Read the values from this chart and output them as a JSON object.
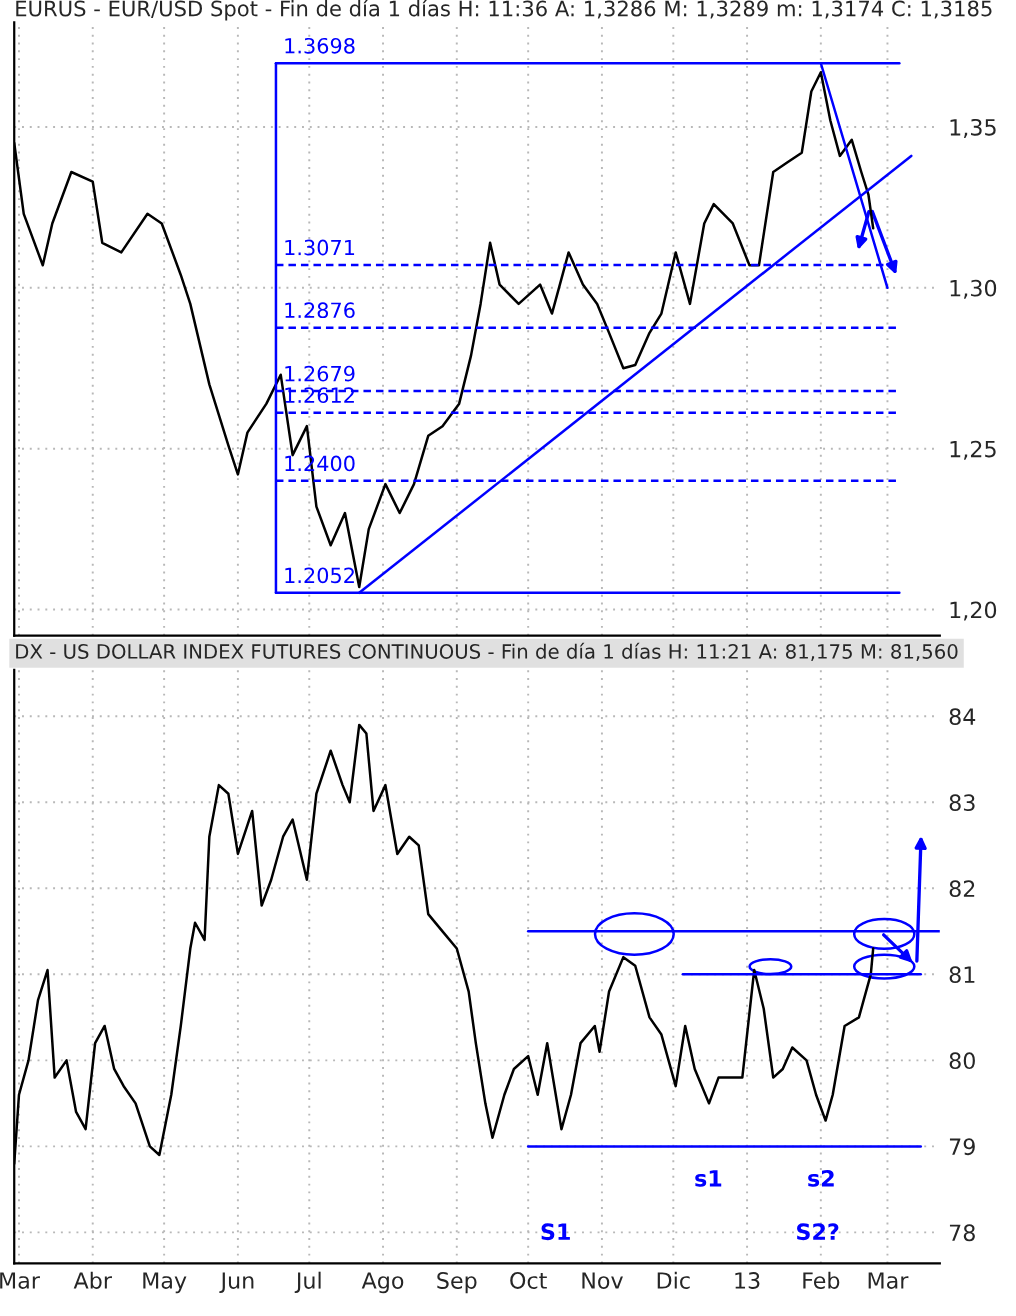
{
  "chart_data": [
    {
      "type": "line",
      "title": "EURUS - EUR/USD Spot - Fin de día 1 días H: 11:36 A: 1,3286 M: 1,3289 m: 1,3174 C: 1,3185",
      "xlim": [
        "2012-02-28",
        "2013-03-23"
      ],
      "ylim": [
        1.1919,
        1.3825
      ],
      "xticks": [
        {
          "value": "2012-03-01",
          "label": null
        },
        {
          "value": "2012-04-01",
          "label": null
        },
        {
          "value": "2012-05-01",
          "label": null
        },
        {
          "value": "2012-06-01",
          "label": null
        },
        {
          "value": "2012-07-01",
          "label": null
        },
        {
          "value": "2012-08-01",
          "label": null
        },
        {
          "value": "2012-09-01",
          "label": null
        },
        {
          "value": "2012-10-01",
          "label": null
        },
        {
          "value": "2012-11-01",
          "label": null
        },
        {
          "value": "2012-12-01",
          "label": null
        },
        {
          "value": "2013-01-01",
          "label": null
        },
        {
          "value": "2013-02-01",
          "label": null
        },
        {
          "value": "2013-03-01",
          "label": null
        }
      ],
      "yticks": [
        {
          "value": 1.2,
          "label": "1,20"
        },
        {
          "value": 1.25,
          "label": "1,25"
        },
        {
          "value": 1.3,
          "label": "1,30"
        },
        {
          "value": 1.35,
          "label": "1,35"
        }
      ],
      "tick_labels": "y",
      "grid": true,
      "marker": "none",
      "series": [
        {
          "color": "#000000",
          "line_style": "solid",
          "x": [
            "2012-02-28",
            "2012-03-03",
            "2012-03-11",
            "2012-03-15",
            "2012-03-23",
            "2012-04-01",
            "2012-04-05",
            "2012-04-13",
            "2012-04-24",
            "2012-04-30",
            "2012-05-08",
            "2012-05-12",
            "2012-05-20",
            "2012-05-28",
            "2012-06-01",
            "2012-06-05",
            "2012-06-13",
            "2012-06-19",
            "2012-06-24",
            "2012-06-30",
            "2012-07-04",
            "2012-07-10",
            "2012-07-16",
            "2012-07-22",
            "2012-07-26",
            "2012-08-02",
            "2012-08-08",
            "2012-08-14",
            "2012-08-20",
            "2012-08-26",
            "2012-09-02",
            "2012-09-07",
            "2012-09-11",
            "2012-09-15",
            "2012-09-19",
            "2012-09-27",
            "2012-10-06",
            "2012-10-11",
            "2012-10-18",
            "2012-10-24",
            "2012-10-30",
            "2012-11-04",
            "2012-11-10",
            "2012-11-15",
            "2012-11-21",
            "2012-11-26",
            "2012-12-02",
            "2012-12-08",
            "2012-12-14",
            "2012-12-18",
            "2012-12-26",
            "2013-01-02",
            "2013-01-06",
            "2013-01-12",
            "2013-01-18",
            "2013-01-24",
            "2013-01-28",
            "2013-02-01",
            "2013-02-05",
            "2013-02-09",
            "2013-02-14",
            "2013-02-18",
            "2013-02-21",
            "2013-02-23"
          ],
          "values": [
            1.345,
            1.323,
            1.307,
            1.32,
            1.336,
            1.333,
            1.314,
            1.311,
            1.323,
            1.32,
            1.304,
            1.295,
            1.27,
            1.251,
            1.242,
            1.255,
            1.264,
            1.273,
            1.248,
            1.257,
            1.232,
            1.22,
            1.23,
            1.207,
            1.225,
            1.239,
            1.23,
            1.239,
            1.254,
            1.257,
            1.264,
            1.279,
            1.295,
            1.314,
            1.301,
            1.295,
            1.301,
            1.292,
            1.311,
            1.301,
            1.295,
            1.286,
            1.275,
            1.276,
            1.286,
            1.292,
            1.311,
            1.295,
            1.32,
            1.326,
            1.32,
            1.307,
            1.307,
            1.336,
            1.339,
            1.342,
            1.361,
            1.367,
            1.352,
            1.341,
            1.346,
            1.336,
            1.329,
            1.3185
          ]
        },
        {
          "color": "#0000ff",
          "line_style": "solid",
          "x": [
            "2012-07-22",
            "2013-03-11"
          ],
          "values": [
            1.2052,
            1.341
          ]
        },
        {
          "color": "#0000ff",
          "line_style": "solid",
          "x": [
            "2013-02-01",
            "2013-03-01"
          ],
          "values": [
            1.3698,
            1.3
          ]
        },
        {
          "color": "#0000ff",
          "line_style": "solid",
          "x": [
            "2012-06-17",
            "2012-06-17"
          ],
          "values": [
            1.2052,
            1.3698
          ]
        },
        {
          "color": "#0000ff",
          "line_style": "solid",
          "x": [
            "2012-06-17",
            "2013-03-06"
          ],
          "values": [
            1.3698,
            1.3698
          ]
        },
        {
          "color": "#0000ff",
          "line_style": "dashed",
          "x": [
            "2012-06-17",
            "2013-03-06"
          ],
          "values": [
            1.3071,
            1.3071
          ]
        },
        {
          "color": "#0000ff",
          "line_style": "dashed",
          "x": [
            "2012-06-17",
            "2013-03-06"
          ],
          "values": [
            1.2876,
            1.2876
          ]
        },
        {
          "color": "#0000ff",
          "line_style": "dashed",
          "x": [
            "2012-06-17",
            "2013-03-06"
          ],
          "values": [
            1.2679,
            1.2679
          ]
        },
        {
          "color": "#0000ff",
          "line_style": "dashed",
          "x": [
            "2012-06-17",
            "2013-03-06"
          ],
          "values": [
            1.2612,
            1.2612
          ]
        },
        {
          "color": "#0000ff",
          "line_style": "dashed",
          "x": [
            "2012-06-17",
            "2013-03-06"
          ],
          "values": [
            1.24,
            1.24
          ]
        },
        {
          "color": "#0000ff",
          "line_style": "solid",
          "x": [
            "2012-06-17",
            "2013-03-06"
          ],
          "values": [
            1.2052,
            1.2052
          ]
        }
      ],
      "annotations": [
        {
          "text": "1.3698",
          "x": "2012-06-20",
          "y": 1.3698
        },
        {
          "text": "1.3071",
          "x": "2012-06-20",
          "y": 1.3071
        },
        {
          "text": "1.2876",
          "x": "2012-06-20",
          "y": 1.2876
        },
        {
          "text": "1.2679",
          "x": "2012-06-20",
          "y": 1.2679
        },
        {
          "text": "1.2612",
          "x": "2012-06-20",
          "y": 1.2612
        },
        {
          "text": "1.2400",
          "x": "2012-06-20",
          "y": 1.24
        },
        {
          "text": "1.2052",
          "x": "2012-06-20",
          "y": 1.2052
        }
      ]
    },
    {
      "type": "line",
      "title": "DX - US DOLLAR INDEX FUTURES CONTINUOUS - Fin de día 1 días H: 11:21 A: 81,175 M: 81,560",
      "xlim": [
        "2012-02-28",
        "2013-03-23"
      ],
      "ylim": [
        77.64,
        84.54
      ],
      "xticks": [
        {
          "value": "2012-03-01",
          "label": "Mar"
        },
        {
          "value": "2012-04-01",
          "label": "Abr"
        },
        {
          "value": "2012-05-01",
          "label": "May"
        },
        {
          "value": "2012-06-01",
          "label": "Jun"
        },
        {
          "value": "2012-07-01",
          "label": "Jul"
        },
        {
          "value": "2012-08-01",
          "label": "Ago"
        },
        {
          "value": "2012-09-01",
          "label": "Sep"
        },
        {
          "value": "2012-10-01",
          "label": "Oct"
        },
        {
          "value": "2012-11-01",
          "label": "Nov"
        },
        {
          "value": "2012-12-01",
          "label": "Dic"
        },
        {
          "value": "2013-01-01",
          "label": "13"
        },
        {
          "value": "2013-02-01",
          "label": "Feb"
        },
        {
          "value": "2013-03-01",
          "label": "Mar"
        }
      ],
      "yticks": [
        78,
        79,
        80,
        81,
        82,
        83,
        84
      ],
      "grid": true,
      "marker": "none",
      "series": [
        {
          "color": "#000000",
          "line_style": "solid",
          "x": [
            "2012-02-28",
            "2012-03-01",
            "2012-03-05",
            "2012-03-09",
            "2012-03-13",
            "2012-03-16",
            "2012-03-21",
            "2012-03-25",
            "2012-03-29",
            "2012-04-02",
            "2012-04-06",
            "2012-04-10",
            "2012-04-14",
            "2012-04-19",
            "2012-04-25",
            "2012-04-29",
            "2012-05-04",
            "2012-05-08",
            "2012-05-12",
            "2012-05-14",
            "2012-05-18",
            "2012-05-20",
            "2012-05-24",
            "2012-05-28",
            "2012-06-01",
            "2012-06-07",
            "2012-06-11",
            "2012-06-15",
            "2012-06-20",
            "2012-06-24",
            "2012-06-30",
            "2012-07-04",
            "2012-07-10",
            "2012-07-15",
            "2012-07-18",
            "2012-07-22",
            "2012-07-25",
            "2012-07-28",
            "2012-08-02",
            "2012-08-07",
            "2012-08-12",
            "2012-08-16",
            "2012-08-20",
            "2012-08-26",
            "2012-09-01",
            "2012-09-06",
            "2012-09-09",
            "2012-09-13",
            "2012-09-16",
            "2012-09-21",
            "2012-09-25",
            "2012-10-01",
            "2012-10-05",
            "2012-10-09",
            "2012-10-15",
            "2012-10-19",
            "2012-10-23",
            "2012-10-29",
            "2012-10-31",
            "2012-11-04",
            "2012-11-10",
            "2012-11-15",
            "2012-11-21",
            "2012-11-26",
            "2012-12-02",
            "2012-12-06",
            "2012-12-10",
            "2012-12-16",
            "2012-12-20",
            "2012-12-26",
            "2012-12-30",
            "2013-01-04",
            "2013-01-08",
            "2013-01-12",
            "2013-01-16",
            "2013-01-20",
            "2013-01-26",
            "2013-01-30",
            "2013-02-03",
            "2013-02-06",
            "2013-02-11",
            "2013-02-17",
            "2013-02-19",
            "2013-02-22",
            "2013-02-23"
          ],
          "values": [
            78.8,
            79.6,
            80.0,
            80.7,
            81.05,
            79.8,
            80.0,
            79.4,
            79.2,
            80.2,
            80.4,
            79.9,
            79.7,
            79.5,
            79.0,
            78.9,
            79.6,
            80.4,
            81.3,
            81.6,
            81.4,
            82.6,
            83.2,
            83.1,
            82.4,
            82.9,
            81.8,
            82.1,
            82.6,
            82.8,
            82.1,
            83.1,
            83.6,
            83.2,
            83.0,
            83.9,
            83.8,
            82.9,
            83.2,
            82.4,
            82.6,
            82.5,
            81.7,
            81.5,
            81.3,
            80.8,
            80.2,
            79.5,
            79.1,
            79.6,
            79.9,
            80.05,
            79.6,
            80.2,
            79.2,
            79.6,
            80.2,
            80.4,
            80.1,
            80.8,
            81.2,
            81.1,
            80.5,
            80.3,
            79.7,
            80.4,
            79.9,
            79.5,
            79.8,
            79.8,
            79.8,
            81.05,
            80.6,
            79.8,
            79.9,
            80.15,
            80.0,
            79.6,
            79.3,
            79.6,
            80.4,
            80.5,
            80.7,
            81.0,
            81.3
          ]
        },
        {
          "color": "#0000ff",
          "line_style": "solid",
          "x": [
            "2012-10-01",
            "2013-03-23"
          ],
          "values": [
            81.5,
            81.5
          ]
        },
        {
          "color": "#0000ff",
          "line_style": "solid",
          "x": [
            "2012-12-05",
            "2013-03-15"
          ],
          "values": [
            81.0,
            81.0
          ]
        },
        {
          "color": "#0000ff",
          "line_style": "solid",
          "x": [
            "2012-10-01",
            "2013-03-15"
          ],
          "values": [
            79.0,
            79.0
          ]
        }
      ],
      "annotations": [
        "S1",
        "s1",
        "s2",
        "S2?"
      ]
    }
  ]
}
